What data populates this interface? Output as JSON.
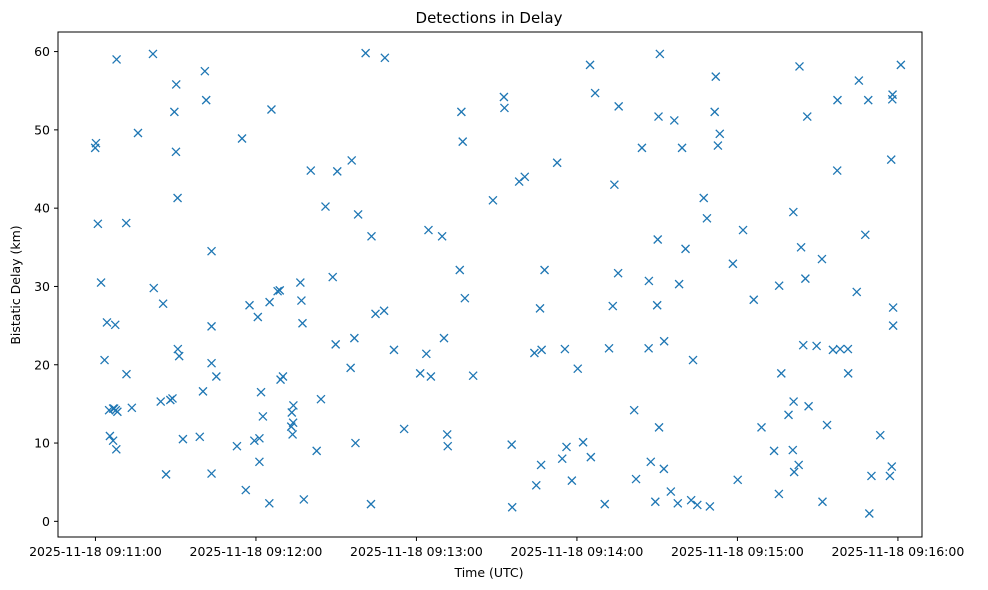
{
  "chart_data": {
    "type": "scatter",
    "title": "Detections in Delay",
    "xlabel": "Time (UTC)",
    "ylabel": "Bistatic Delay (km)",
    "marker": "x",
    "color": "#1f77b4",
    "grid": false,
    "xlim": [
      "2025-11-18 09:10:46",
      "2025-11-18 09:16:09"
    ],
    "ylim": [
      -2,
      62.5
    ],
    "xticks": [
      "2025-11-18 09:11:00",
      "2025-11-18 09:12:00",
      "2025-11-18 09:13:00",
      "2025-11-18 09:14:00",
      "2025-11-18 09:15:00",
      "2025-11-18 09:16:00"
    ],
    "yticks": [
      "0",
      "10",
      "20",
      "30",
      "40",
      "50",
      "60"
    ],
    "series": [
      {
        "x": [
          "09:10:59.9",
          "09:11:00.2",
          "09:11:00.9",
          "09:11:04.3",
          "09:11:05.4",
          "09:11:06.6",
          "09:11:02.1",
          "09:11:03.4",
          "09:11:05.1",
          "09:11:06.6",
          "09:11:07.0",
          "09:11:07.4",
          "09:11:07.8",
          "09:11:08.2",
          "09:11:07.6",
          "09:11:07.9",
          "09:11:11.6",
          "09:11:13.6",
          "09:11:11.5",
          "09:11:15.9",
          "09:11:21.8",
          "09:11:21.5",
          "09:11:24.4",
          "09:11:25.3",
          "09:11:26.4",
          "09:11:28.0",
          "09:11:29.5",
          "09:11:28.8",
          "09:11:30.2",
          "09:11:30.8",
          "09:11:30.1",
          "09:11:30.7",
          "09:11:31.3",
          "09:11:32.7",
          "09:11:39.0",
          "09:11:40.2",
          "09:11:40.9",
          "09:11:41.4",
          "09:11:43.4",
          "09:11:43.4",
          "09:11:43.4",
          "09:11:43.4",
          "09:11:45.2",
          "09:11:52.9",
          "09:11:54.8",
          "09:11:56.2",
          "09:11:57.6",
          "09:11:59.4",
          "09:12:01.3",
          "09:12:01.3",
          "09:12:01.9",
          "09:12:02.6",
          "09:12:00.7",
          "09:12:08.1",
          "09:12:08.9",
          "09:12:09.2",
          "09:12:10.1",
          "09:12:05.8",
          "09:12:05.1",
          "09:12:05.0",
          "09:12:13.9",
          "09:12:13.4",
          "09:12:14.0",
          "09:12:16.6",
          "09:12:17.4",
          "09:12:17.0",
          "09:12:13.2",
          "09:12:13.7",
          "09:12:17.9",
          "09:12:20.5",
          "09:12:22.7",
          "09:12:26.0",
          "09:12:24.3",
          "09:12:28.7",
          "09:12:30.4",
          "09:12:29.8",
          "09:12:35.8",
          "09:12:37.2",
          "09:12:36.8",
          "09:12:35.4",
          "09:12:38.2",
          "09:12:41.0",
          "09:12:43.2",
          "09:12:44.7",
          "09:12:43.0",
          "09:12:48.2",
          "09:12:47.9",
          "09:12:51.6",
          "09:12:55.4",
          "09:13:03.7",
          "09:13:01.4",
          "09:13:04.5",
          "09:13:05.4",
          "09:13:09.6",
          "09:13:10.3",
          "09:13:11.7",
          "09:13:11.5",
          "09:13:16.8",
          "09:13:16.2",
          "09:13:17.3",
          "09:13:18.1",
          "09:13:21.2",
          "09:13:32.9",
          "09:13:32.7",
          "09:13:28.6",
          "09:13:35.8",
          "09:13:35.6",
          "09:13:38.4",
          "09:13:40.5",
          "09:13:44.1",
          "09:13:44.8",
          "09:13:46.2",
          "09:13:46.6",
          "09:13:47.9",
          "09:13:46.8",
          "09:13:52.6",
          "09:13:54.5",
          "09:13:56.1",
          "09:13:55.5",
          "09:13:58.1",
          "09:14:00.3",
          "09:14:02.3",
          "09:14:04.9",
          "09:14:05.2",
          "09:14:06.8",
          "09:14:10.4",
          "09:14:14.0",
          "09:14:13.4",
          "09:14:12.0",
          "09:14:15.4",
          "09:14:15.6",
          "09:14:21.4",
          "09:14:22.1",
          "09:14:24.3",
          "09:14:26.8",
          "09:14:26.9",
          "09:14:27.6",
          "09:14:29.3",
          "09:14:30.0",
          "09:14:30.2",
          "09:14:31.0",
          "09:14:30.5",
          "09:14:32.6",
          "09:14:37.7",
          "09:14:38.2",
          "09:14:30.7",
          "09:14:32.5",
          "09:14:35.1",
          "09:14:36.4",
          "09:14:39.3",
          "09:14:40.6",
          "09:14:42.7",
          "09:14:43.4",
          "09:14:45.0",
          "09:14:47.4",
          "09:14:48.6",
          "09:14:49.7",
          "09:14:51.5",
          "09:14:51.9",
          "09:14:52.7",
          "09:14:53.4",
          "09:14:58.3",
          "09:15:00.1",
          "09:15:02.1",
          "09:15:09.0",
          "09:15:06.1",
          "09:15:13.7",
          "09:15:15.6",
          "09:15:16.4",
          "09:15:15.5",
          "09:15:19.1",
          "09:15:20.7",
          "09:15:21.0",
          "09:15:23.2",
          "09:15:22.9",
          "09:15:23.8",
          "09:15:25.4",
          "09:15:26.1",
          "09:15:24.6",
          "09:15:26.6",
          "09:15:20.9",
          "09:15:21.2",
          "09:15:29.6",
          "09:15:31.8",
          "09:15:33.5",
          "09:15:31.6",
          "09:15:37.3",
          "09:15:37.4",
          "09:15:38.4",
          "09:15:35.7",
          "09:15:41.3",
          "09:15:41.4",
          "09:15:45.4",
          "09:15:44.6",
          "09:15:47.8",
          "09:15:48.9",
          "09:15:50.1",
          "09:15:49.3",
          "09:15:53.4",
          "09:15:57.9",
          "09:15:57.0",
          "09:15:57.7",
          "09:15:58.2",
          "09:16:01.1",
          "09:15:58.0",
          "09:15:58.2",
          "09:15:57.5"
        ],
        "y": [
          47.7,
          48.3,
          38.0,
          25.4,
          10.9,
          10.3,
          30.5,
          20.6,
          14.2,
          14.4,
          14.4,
          25.1,
          9.2,
          14.0,
          14.2,
          59.0,
          18.8,
          14.5,
          38.1,
          49.6,
          29.8,
          59.7,
          15.3,
          27.8,
          6.0,
          15.5,
          52.3,
          15.7,
          55.8,
          22.0,
          47.2,
          41.3,
          21.1,
          10.5,
          10.8,
          16.6,
          57.5,
          53.8,
          6.1,
          34.5,
          24.9,
          20.2,
          18.5,
          9.6,
          48.9,
          4.0,
          27.6,
          10.3,
          10.6,
          7.6,
          16.5,
          13.4,
          26.1,
          29.4,
          29.5,
          18.1,
          18.5,
          52.6,
          28.0,
          2.3,
          12.6,
          13.9,
          14.8,
          30.5,
          25.3,
          28.2,
          12.1,
          11.1,
          2.8,
          44.8,
          9.0,
          40.2,
          15.6,
          31.2,
          44.7,
          22.6,
          46.1,
          10.0,
          23.4,
          19.6,
          39.2,
          59.8,
          36.4,
          26.5,
          2.2,
          59.2,
          26.9,
          21.9,
          11.8,
          21.4,
          18.9,
          37.2,
          18.5,
          36.4,
          23.4,
          9.6,
          11.1,
          52.3,
          32.1,
          48.5,
          28.5,
          18.6,
          52.8,
          54.2,
          41.0,
          1.8,
          9.8,
          43.4,
          44.0,
          21.5,
          4.6,
          27.2,
          7.2,
          32.1,
          21.9,
          45.8,
          8.0,
          9.5,
          22.0,
          5.2,
          19.5,
          10.1,
          58.3,
          8.2,
          54.7,
          2.2,
          43.0,
          27.5,
          22.1,
          31.7,
          53.0,
          14.2,
          5.4,
          47.7,
          22.1,
          30.7,
          7.6,
          2.5,
          27.6,
          36.0,
          59.7,
          51.7,
          23.0,
          2.3,
          30.3,
          12.0,
          6.7,
          3.8,
          51.2,
          47.7,
          34.8,
          2.7,
          20.6,
          2.1,
          41.3,
          38.7,
          1.9,
          52.3,
          56.8,
          48.0,
          49.5,
          32.9,
          5.3,
          37.2,
          12.0,
          28.3,
          9.0,
          30.1,
          18.9,
          3.5,
          13.6,
          9.1,
          15.3,
          58.1,
          7.2,
          35.0,
          31.0,
          51.7,
          22.5,
          14.7,
          39.5,
          6.3,
          22.4,
          2.5,
          12.3,
          33.5,
          44.8,
          53.8,
          22.0,
          21.9,
          22.0,
          18.9,
          56.3,
          29.3,
          36.6,
          53.8,
          5.8,
          1.0,
          11.0,
          53.9,
          5.8,
          7.0,
          27.3,
          58.3,
          54.5,
          25.0,
          46.2
        ]
      }
    ]
  }
}
